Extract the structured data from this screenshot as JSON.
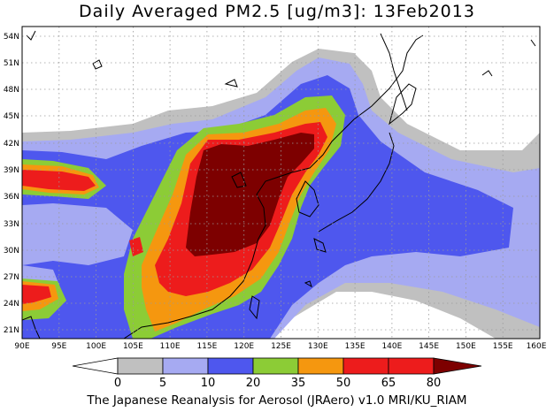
{
  "title": "Daily Averaged PM2.5 [ug/m3]: 13Feb2013",
  "footer": "The Japanese Reanalysis for Aerosol (JRAero) v1.0 MRI/KU_RIAM",
  "map": {
    "lon_range": [
      90,
      160
    ],
    "lat_range": [
      20,
      55
    ],
    "lon_ticks": [
      "90E",
      "95E",
      "100E",
      "105E",
      "110E",
      "115E",
      "120E",
      "125E",
      "130E",
      "135E",
      "140E",
      "145E",
      "150E",
      "155E",
      "160E"
    ],
    "lat_ticks": [
      "21N",
      "24N",
      "27N",
      "30N",
      "33N",
      "36N",
      "39N",
      "42N",
      "45N",
      "48N",
      "51N",
      "54N"
    ]
  },
  "colorbar": {
    "levels": [
      "0",
      "5",
      "10",
      "20",
      "35",
      "50",
      "65",
      "80"
    ],
    "colors": [
      "#ffffff",
      "#c0c0c0",
      "#a6aaf2",
      "#4e57ee",
      "#8ccc36",
      "#f5970f",
      "#ed1c1c",
      "#7d0000"
    ]
  }
}
